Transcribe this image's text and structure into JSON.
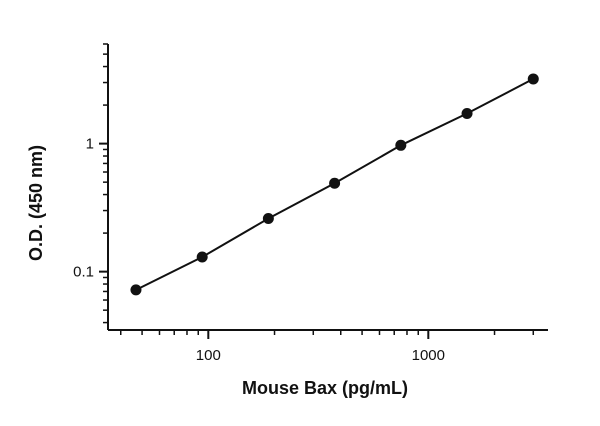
{
  "chart_data": {
    "type": "scatter",
    "title": "",
    "xlabel": "Mouse Bax (pg/mL)",
    "ylabel": "O.D. (450 nm)",
    "xscale": "log",
    "yscale": "log",
    "xlim": [
      35,
      3500
    ],
    "ylim": [
      0.035,
      6
    ],
    "x_major_ticks": [
      100,
      1000
    ],
    "x_tick_labels": [
      "100",
      "1000"
    ],
    "y_major_ticks": [
      0.1,
      1
    ],
    "y_tick_labels": [
      "0.1",
      "1"
    ],
    "grid": false,
    "legend": "none",
    "series": [
      {
        "x": [
          46.9,
          93.8,
          187.5,
          375,
          750,
          1500,
          3000
        ],
        "y": [
          0.072,
          0.13,
          0.26,
          0.49,
          0.97,
          1.72,
          3.2
        ]
      }
    ],
    "marker_color": "#111111",
    "line_color": "#111111"
  }
}
